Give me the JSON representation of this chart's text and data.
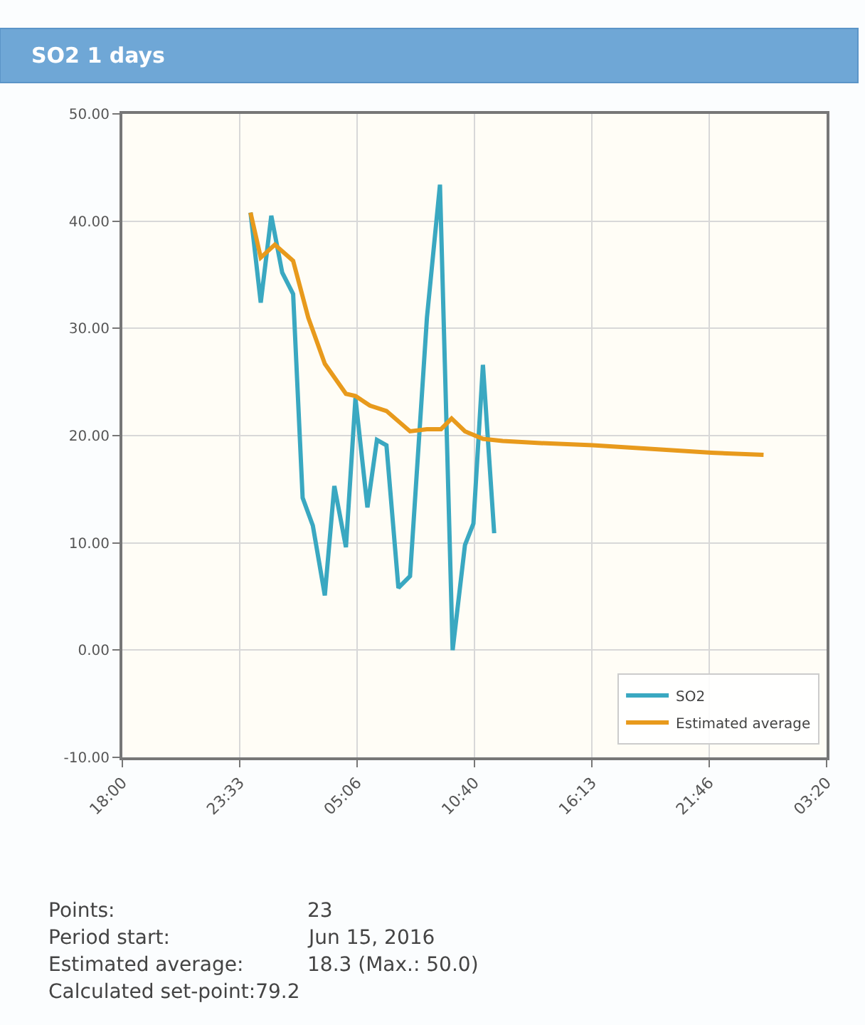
{
  "chart_data": {
    "type": "line",
    "title": "SO2 1 days",
    "x": [
      "2016-06-15T00:04",
      "2016-06-15T00:33",
      "2016-06-15T01:03",
      "2016-06-15T01:34",
      "2016-06-15T02:05",
      "2016-06-15T02:32",
      "2016-06-15T03:01",
      "2016-06-15T03:35",
      "2016-06-15T04:02",
      "2016-06-15T04:35",
      "2016-06-15T05:02",
      "2016-06-15T05:36",
      "2016-06-15T06:03",
      "2016-06-15T06:30",
      "2016-06-15T07:04",
      "2016-06-15T07:37",
      "2016-06-15T08:25",
      "2016-06-15T09:02",
      "2016-06-15T09:38",
      "2016-06-15T10:13",
      "2016-06-15T10:37",
      "2016-06-15T11:04",
      "2016-06-15T11:36"
    ],
    "series": [
      {
        "name": "SO2",
        "color": "#3aa8c1",
        "values": [
          40.8,
          32.4,
          40.5,
          35.2,
          33.2,
          14.2,
          11.6,
          5.1,
          15.3,
          9.6,
          23.5,
          13.3,
          19.6,
          19.1,
          5.8,
          6.9,
          31.0,
          43.4,
          0.0,
          9.8,
          11.8,
          26.6,
          10.9
        ]
      },
      {
        "name": "Estimated average",
        "color": "#e89a1c",
        "x": [
          "2016-06-15T00:04",
          "2016-06-15T00:33",
          "2016-06-15T01:13",
          "2016-06-15T02:05",
          "2016-06-15T02:48",
          "2016-06-15T03:35",
          "2016-06-15T04:35",
          "2016-06-15T05:02",
          "2016-06-15T05:43",
          "2016-06-15T06:30",
          "2016-06-15T07:37",
          "2016-06-15T08:25",
          "2016-06-15T09:05",
          "2016-06-15T09:35",
          "2016-06-15T10:13",
          "2016-06-15T11:04",
          "2016-06-15T12:00",
          "2016-06-15T13:48",
          "2016-06-15T16:16",
          "2016-06-15T21:53",
          "2016-06-16T00:21"
        ],
        "values": [
          40.8,
          36.6,
          37.8,
          36.3,
          31.0,
          26.7,
          23.9,
          23.7,
          22.8,
          22.3,
          20.4,
          20.6,
          20.6,
          21.6,
          20.4,
          19.7,
          19.5,
          19.3,
          19.1,
          18.4,
          18.2
        ]
      }
    ],
    "xlim": [
      "2016-06-14T18:00",
      "2016-06-16T03:20"
    ],
    "xticks": [
      {
        "value": "2016-06-14T18:00",
        "label": "18:00"
      },
      {
        "value": "2016-06-14T23:33",
        "label": "23:33"
      },
      {
        "value": "2016-06-15T05:06",
        "label": "05:06"
      },
      {
        "value": "2016-06-15T10:40",
        "label": "10:40"
      },
      {
        "value": "2016-06-15T16:13",
        "label": "16:13"
      },
      {
        "value": "2016-06-15T21:46",
        "label": "21:46"
      },
      {
        "value": "2016-06-16T03:20",
        "label": "03:20"
      }
    ],
    "ylim": [
      -10,
      50
    ],
    "yticks": [
      {
        "value": -10,
        "label": "-10.00"
      },
      {
        "value": 0,
        "label": "0.00"
      },
      {
        "value": 10,
        "label": "10.00"
      },
      {
        "value": 20,
        "label": "20.00"
      },
      {
        "value": 30,
        "label": "30.00"
      },
      {
        "value": 40,
        "label": "40.00"
      },
      {
        "value": 50,
        "label": "50.00"
      }
    ],
    "grid": true,
    "legend": "bottom right",
    "marker": "none",
    "line_style": "solid",
    "annotations": [
      "Points:",
      "23",
      "Period start:",
      "Jun 15, 2016",
      "Estimated average:",
      "18.3 (Max.: 50.0)",
      "Calculated set-point:79.2"
    ]
  }
}
